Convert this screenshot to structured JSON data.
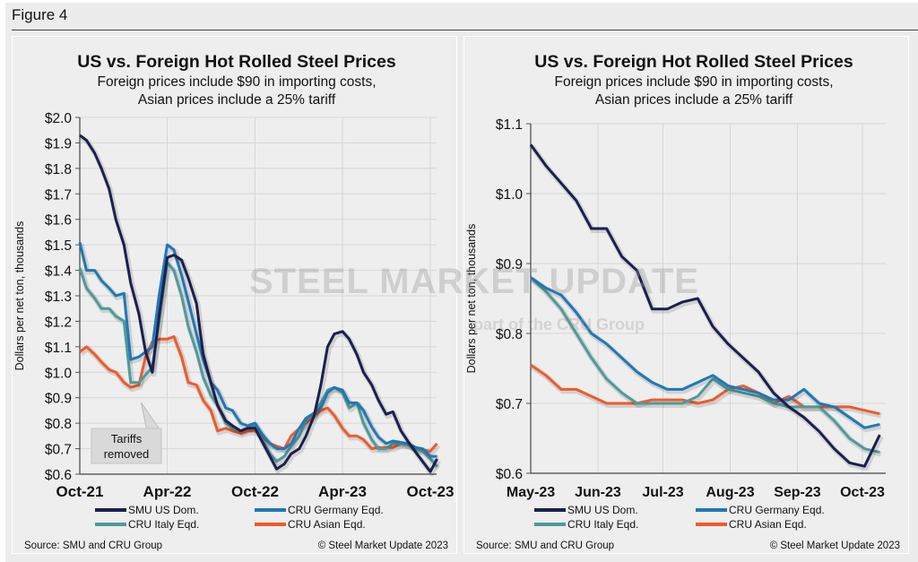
{
  "figure_title": "Figure 4",
  "watermark": {
    "main": "STEEL MARKET UPDATE",
    "sub": "part of the CRU Group"
  },
  "colors": {
    "smu": "#1b1f4f",
    "germany": "#1f78b8",
    "italy": "#4f9a9b",
    "asian": "#f15a29"
  },
  "chart_data": [
    {
      "type": "line",
      "title": "US vs. Foreign Hot Rolled Steel Prices",
      "subtitle": [
        "Foreign prices include $90 in importing costs,",
        "Asian prices include a 25% tariff"
      ],
      "ylabel": "Dollars per net ton, thousands",
      "xlabel": "",
      "ylim": [
        0.6,
        2.0
      ],
      "yticks": [
        2.0,
        1.9,
        1.8,
        1.7,
        1.6,
        1.5,
        1.4,
        1.3,
        1.2,
        1.1,
        1.0,
        0.9,
        0.8,
        0.7,
        0.6
      ],
      "ytick_labels": [
        "$2.0",
        "$1.9",
        "$1.8",
        "$1.7",
        "$1.6",
        "$1.5",
        "$1.4",
        "$1.3",
        "$1.2",
        "$1.1",
        "$1.0",
        "$0.9",
        "$0.8",
        "$0.7",
        "$0.6"
      ],
      "xticks": [
        "2021-10-01",
        "2022-04-01",
        "2022-10-01",
        "2023-04-01",
        "2023-10-01"
      ],
      "xtick_labels": [
        "Oct-21",
        "Apr-22",
        "Oct-22",
        "Apr-23",
        "Oct-23"
      ],
      "grid": true,
      "legend_placement": "bottom",
      "annotation": "Tariffs removed",
      "annotation_x": "2022-02-15",
      "source": "Source: SMU and CRU Group",
      "copyright": "© Steel Market Update 2023",
      "x": [
        "2021-10-01",
        "2021-10-15",
        "2021-11-01",
        "2021-11-15",
        "2021-12-01",
        "2021-12-15",
        "2022-01-01",
        "2022-01-15",
        "2022-02-01",
        "2022-02-15",
        "2022-03-01",
        "2022-03-15",
        "2022-04-01",
        "2022-04-15",
        "2022-05-01",
        "2022-05-15",
        "2022-06-01",
        "2022-06-15",
        "2022-07-01",
        "2022-07-15",
        "2022-08-01",
        "2022-08-15",
        "2022-09-01",
        "2022-09-15",
        "2022-10-01",
        "2022-10-15",
        "2022-11-01",
        "2022-11-15",
        "2022-12-01",
        "2022-12-15",
        "2023-01-01",
        "2023-01-15",
        "2023-02-01",
        "2023-02-15",
        "2023-03-01",
        "2023-03-15",
        "2023-04-01",
        "2023-04-15",
        "2023-05-01",
        "2023-05-15",
        "2023-06-01",
        "2023-06-15",
        "2023-07-01",
        "2023-07-15",
        "2023-08-01",
        "2023-08-15",
        "2023-09-01",
        "2023-09-15",
        "2023-10-01",
        "2023-10-15"
      ],
      "series": [
        {
          "name": "SMU US Dom.",
          "color_key": "smu",
          "values": [
            1.93,
            1.91,
            1.86,
            1.8,
            1.72,
            1.6,
            1.5,
            1.35,
            1.23,
            1.08,
            1.0,
            1.22,
            1.45,
            1.46,
            1.44,
            1.37,
            1.27,
            1.07,
            0.96,
            0.87,
            0.81,
            0.79,
            0.77,
            0.78,
            0.78,
            0.73,
            0.67,
            0.62,
            0.64,
            0.68,
            0.7,
            0.75,
            0.83,
            0.95,
            1.1,
            1.15,
            1.16,
            1.13,
            1.07,
            1.0,
            0.95,
            0.89,
            0.835,
            0.845,
            0.77,
            0.73,
            0.685,
            0.65,
            0.61,
            0.66
          ]
        },
        {
          "name": "CRU Germany Eqd.",
          "color_key": "germany",
          "values": [
            1.51,
            1.4,
            1.4,
            1.36,
            1.33,
            1.3,
            1.31,
            1.05,
            1.06,
            1.08,
            1.1,
            1.3,
            1.5,
            1.48,
            1.38,
            1.28,
            1.15,
            1.05,
            0.96,
            0.93,
            0.86,
            0.85,
            0.8,
            0.79,
            0.8,
            0.76,
            0.72,
            0.7,
            0.7,
            0.72,
            0.78,
            0.82,
            0.84,
            0.86,
            0.92,
            0.94,
            0.93,
            0.88,
            0.88,
            0.85,
            0.785,
            0.745,
            0.72,
            0.73,
            0.725,
            0.72,
            0.705,
            0.7,
            0.67,
            0.67
          ]
        },
        {
          "name": "CRU Italy Eqd.",
          "color_key": "italy",
          "values": [
            1.41,
            1.33,
            1.29,
            1.25,
            1.25,
            1.22,
            1.2,
            0.96,
            0.96,
            0.99,
            1.02,
            1.2,
            1.43,
            1.4,
            1.3,
            1.18,
            1.08,
            0.98,
            0.91,
            0.87,
            0.8,
            0.78,
            0.77,
            0.78,
            0.79,
            0.74,
            0.68,
            0.65,
            0.67,
            0.71,
            0.75,
            0.81,
            0.84,
            0.88,
            0.93,
            0.94,
            0.92,
            0.86,
            0.88,
            0.8,
            0.735,
            0.7,
            0.7,
            0.72,
            0.72,
            0.715,
            0.7,
            0.69,
            0.66,
            0.63
          ]
        },
        {
          "name": "CRU Asian Eqd.",
          "color_key": "asian",
          "values": [
            1.08,
            1.1,
            1.07,
            1.04,
            1.01,
            1.0,
            0.96,
            0.94,
            0.95,
            1.06,
            1.12,
            1.13,
            1.13,
            1.14,
            1.06,
            0.96,
            0.95,
            0.89,
            0.85,
            0.77,
            0.78,
            0.77,
            0.76,
            0.77,
            0.77,
            0.75,
            0.72,
            0.71,
            0.7,
            0.75,
            0.78,
            0.8,
            0.83,
            0.85,
            0.86,
            0.83,
            0.78,
            0.75,
            0.75,
            0.735,
            0.7,
            0.705,
            0.705,
            0.705,
            0.72,
            0.715,
            0.7,
            0.695,
            0.69,
            0.72
          ]
        }
      ]
    },
    {
      "type": "line",
      "title": "US vs. Foreign Hot Rolled Steel Prices",
      "subtitle": [
        "Foreign prices include $90 in importing costs,",
        "Asian prices include a 25% tariff"
      ],
      "ylabel": "Dollars per net ton, thousands",
      "xlabel": "",
      "ylim": [
        0.6,
        1.1
      ],
      "yticks": [
        1.1,
        1.0,
        0.9,
        0.8,
        0.7,
        0.6
      ],
      "ytick_labels": [
        "$1.1",
        "$1.0",
        "$0.9",
        "$0.8",
        "$0.7",
        "$0.6"
      ],
      "xticks": [
        "2023-05-01",
        "2023-06-01",
        "2023-07-01",
        "2023-08-01",
        "2023-09-01",
        "2023-10-01"
      ],
      "xtick_labels": [
        "May-23",
        "Jun-23",
        "Jul-23",
        "Aug-23",
        "Sep-23",
        "Oct-23"
      ],
      "grid": true,
      "legend_placement": "bottom",
      "source": "Source: SMU and CRU Group",
      "copyright": "© Steel Market Update 2023",
      "x": [
        "2023-05-01",
        "2023-05-08",
        "2023-05-15",
        "2023-05-22",
        "2023-05-29",
        "2023-06-05",
        "2023-06-12",
        "2023-06-19",
        "2023-06-26",
        "2023-07-03",
        "2023-07-10",
        "2023-07-17",
        "2023-07-24",
        "2023-07-31",
        "2023-08-07",
        "2023-08-14",
        "2023-08-21",
        "2023-08-28",
        "2023-09-04",
        "2023-09-11",
        "2023-09-18",
        "2023-09-25",
        "2023-10-02",
        "2023-10-09"
      ],
      "series": [
        {
          "name": "SMU US Dom.",
          "color_key": "smu",
          "values": [
            1.07,
            1.04,
            1.015,
            0.99,
            0.95,
            0.95,
            0.91,
            0.89,
            0.835,
            0.835,
            0.845,
            0.85,
            0.81,
            0.785,
            0.765,
            0.745,
            0.715,
            0.695,
            0.68,
            0.66,
            0.635,
            0.615,
            0.61,
            0.655
          ]
        },
        {
          "name": "CRU Germany Eqd.",
          "color_key": "germany",
          "values": [
            0.88,
            0.865,
            0.855,
            0.83,
            0.8,
            0.785,
            0.765,
            0.745,
            0.73,
            0.72,
            0.72,
            0.73,
            0.74,
            0.725,
            0.72,
            0.715,
            0.705,
            0.705,
            0.72,
            0.7,
            0.695,
            0.68,
            0.665,
            0.67
          ]
        },
        {
          "name": "CRU Italy Eqd.",
          "color_key": "italy",
          "values": [
            0.88,
            0.86,
            0.835,
            0.8,
            0.765,
            0.735,
            0.715,
            0.7,
            0.7,
            0.7,
            0.7,
            0.71,
            0.735,
            0.72,
            0.715,
            0.71,
            0.7,
            0.695,
            0.695,
            0.695,
            0.675,
            0.65,
            0.635,
            0.63
          ]
        },
        {
          "name": "CRU Asian Eqd.",
          "color_key": "asian",
          "values": [
            0.755,
            0.74,
            0.72,
            0.72,
            0.71,
            0.7,
            0.7,
            0.7,
            0.705,
            0.705,
            0.705,
            0.7,
            0.705,
            0.72,
            0.725,
            0.715,
            0.7,
            0.71,
            0.695,
            0.695,
            0.695,
            0.695,
            0.69,
            0.685
          ]
        }
      ]
    }
  ]
}
